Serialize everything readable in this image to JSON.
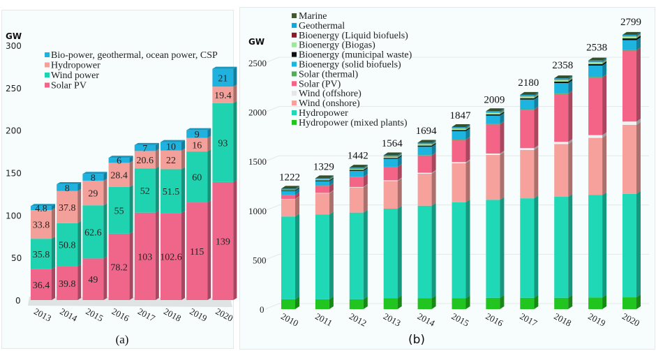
{
  "figure": {
    "panels": [
      "(a)",
      "(b)"
    ]
  },
  "chart_data": [
    {
      "type": "bar",
      "stacked": true,
      "panel_label": "(a)",
      "title": "",
      "xlabel": "",
      "ylabel": "GW",
      "ylim": [
        0,
        300
      ],
      "yticks": [
        0,
        50,
        100,
        150,
        200,
        250,
        300
      ],
      "grid": false,
      "legend_position": "top-left",
      "categories": [
        "2013",
        "2014",
        "2015",
        "2016",
        "2017",
        "2018",
        "2019",
        "2020"
      ],
      "series": [
        {
          "name": "Solar PV",
          "color": "#f0668a",
          "values": [
            36.4,
            39.8,
            49,
            78.2,
            103,
            102.6,
            115,
            139
          ]
        },
        {
          "name": "Wind power",
          "color": "#1fd3b0",
          "values": [
            35.8,
            50.8,
            62.6,
            55,
            52,
            51.5,
            60,
            93
          ]
        },
        {
          "name": "Hydropower",
          "color": "#f4a09a",
          "values": [
            33.8,
            37.8,
            29,
            28.4,
            20.6,
            22,
            16,
            19.4
          ]
        },
        {
          "name": "Bio-power, geothermal, ocean power, CSP",
          "color": "#1fb2de",
          "values": [
            4.8,
            8,
            8,
            6,
            7,
            10,
            9,
            21
          ]
        }
      ],
      "data_labels": [
        [
          "36.4",
          "35.8",
          "33.8",
          "4.8"
        ],
        [
          "39.8",
          "50.8",
          "37.8",
          "8"
        ],
        [
          "49",
          "62.6",
          "29",
          "8"
        ],
        [
          "78.2",
          "55",
          "28.4",
          "6"
        ],
        [
          "103",
          "52",
          "20.6",
          "7"
        ],
        [
          "102.6",
          "51.5",
          "22",
          "10"
        ],
        [
          "115",
          "60",
          "16",
          "9"
        ],
        [
          "139",
          "93",
          "19.4",
          "21"
        ]
      ],
      "legend": [
        "Bio-power, geothermal, ocean power, CSP",
        "Hydropower",
        "Wind power",
        "Solar PV"
      ]
    },
    {
      "type": "bar",
      "stacked": true,
      "panel_label": "(b)",
      "title": "",
      "xlabel": "",
      "ylabel": "GW",
      "ylim": [
        0,
        2800
      ],
      "yticks": [
        0,
        500,
        1000,
        1500,
        2000,
        2500
      ],
      "grid": true,
      "legend_position": "top-left",
      "categories": [
        "2010",
        "2011",
        "2012",
        "2013",
        "2014",
        "2015",
        "2016",
        "2017",
        "2018",
        "2019",
        "2020"
      ],
      "totals": [
        1222,
        1329,
        1442,
        1564,
        1694,
        1847,
        2009,
        2180,
        2358,
        2538,
        2799
      ],
      "series": [
        {
          "name": "Hydropower (mixed plants)",
          "color": "#22c41f",
          "values": [
            100,
            100,
            100,
            110,
            110,
            110,
            115,
            115,
            115,
            118,
            120
          ]
        },
        {
          "name": "Hydropower",
          "color": "#1fd8b6",
          "values": [
            840,
            860,
            880,
            910,
            940,
            975,
            995,
            1010,
            1025,
            1040,
            1050
          ]
        },
        {
          "name": "Wind (onshore)",
          "color": "#f6a19b",
          "values": [
            175,
            215,
            255,
            280,
            325,
            395,
            455,
            490,
            535,
            580,
            700
          ]
        },
        {
          "name": "Wind (offshore)",
          "color": "#f2f2f2",
          "values": [
            3,
            4,
            5,
            7,
            9,
            12,
            14,
            19,
            23,
            28,
            34
          ]
        },
        {
          "name": "Solar (PV)",
          "color": "#f36486",
          "values": [
            40,
            72,
            100,
            135,
            175,
            225,
            295,
            390,
            485,
            585,
            720
          ]
        },
        {
          "name": "Solar (thermal)",
          "color": "#56a85a",
          "values": [
            1,
            2,
            3,
            3,
            4,
            4,
            5,
            5,
            6,
            6,
            6
          ]
        },
        {
          "name": "Bioenergy (solid biofuels)",
          "color": "#1db5e0",
          "values": [
            40,
            45,
            60,
            80,
            85,
            85,
            85,
            98,
            105,
            115,
            100
          ]
        },
        {
          "name": "Bioenergy (municipal waste)",
          "color": "#111111",
          "values": [
            8,
            9,
            10,
            10,
            12,
            12,
            13,
            14,
            15,
            16,
            18
          ]
        },
        {
          "name": "Bioenergy (Biogas)",
          "color": "#9ee89a",
          "values": [
            5,
            10,
            12,
            14,
            15,
            16,
            17,
            18,
            18,
            19,
            20
          ]
        },
        {
          "name": "Bioenergy (Liquid biofuels)",
          "color": "#8b1a2b",
          "values": [
            2,
            2,
            2,
            2,
            2,
            2,
            2,
            2,
            2,
            2,
            2
          ]
        },
        {
          "name": "Geothermal",
          "color": "#1aa3d6",
          "values": [
            8,
            9,
            9,
            10,
            12,
            12,
            13,
            14,
            14,
            14,
            14
          ]
        },
        {
          "name": "Marine",
          "color": "#3f5a2f",
          "values": [
            0.5,
            0.5,
            0.5,
            0.5,
            0.5,
            0.5,
            0.5,
            0.5,
            0.5,
            0.5,
            0.5
          ]
        }
      ],
      "legend": [
        "Marine",
        "Geothermal",
        "Bioenergy (Liquid biofuels)",
        "Bioenergy (Biogas)",
        "Bioenergy (municipal waste)",
        "Bioenergy (solid biofuels)",
        "Solar (thermal)",
        "Solar (PV)",
        "Wind (offshore)",
        "Wind (onshore)",
        "Hydropower",
        "Hydropower (mixed plants)"
      ]
    }
  ]
}
